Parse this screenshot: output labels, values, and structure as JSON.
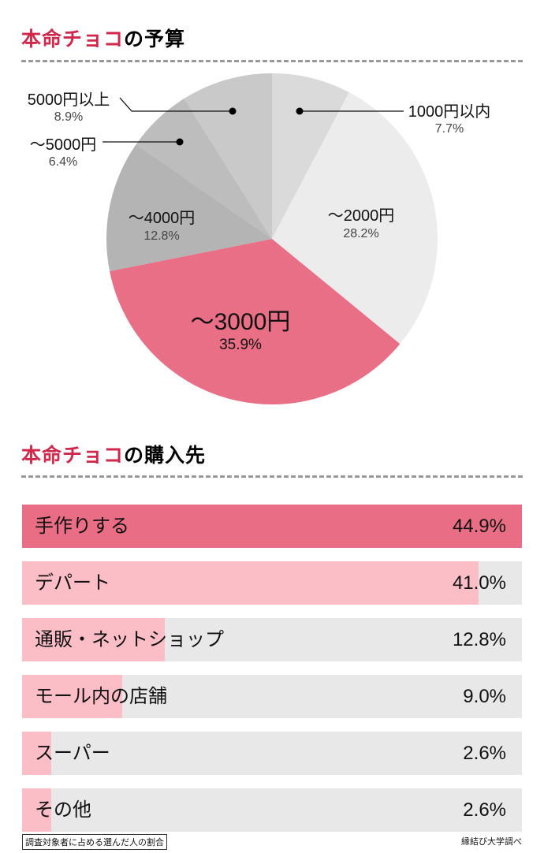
{
  "pie_section": {
    "title_accent": "本命チョコ",
    "title_rest": "の予算"
  },
  "bar_section": {
    "title_accent": "本命チョコ",
    "title_rest": "の購入先"
  },
  "chart_data": [
    {
      "type": "pie",
      "start": "top",
      "direction": "clockwise",
      "slices": [
        {
          "label": "1000円以内",
          "value": 7.7,
          "display": "7.7%",
          "color": "#dadada"
        },
        {
          "label": "〜2000円",
          "value": 28.2,
          "display": "28.2%",
          "color": "#ececec"
        },
        {
          "label": "〜3000円",
          "value": 35.9,
          "display": "35.9%",
          "color": "#e96f86"
        },
        {
          "label": "〜4000円",
          "value": 12.8,
          "display": "12.8%",
          "color": "#b4b4b4"
        },
        {
          "label": "〜5000円",
          "value": 6.4,
          "display": "6.4%",
          "color": "#bdbdbd"
        },
        {
          "label": "5000円以上",
          "value": 8.9,
          "display": "8.9%",
          "color": "#c9c9c9"
        }
      ]
    },
    {
      "type": "bar",
      "orientation": "horizontal",
      "categories": [
        "手作りする",
        "デパート",
        "通販・ネットショップ",
        "モール内の店舗",
        "スーパー",
        "その他"
      ],
      "values": [
        44.9,
        41.0,
        12.8,
        9.0,
        2.6,
        2.6
      ],
      "display": [
        "44.9%",
        "41.0%",
        "12.8%",
        "9.0%",
        "2.6%",
        "2.6%"
      ],
      "highlight_color": "#e96e85",
      "bar_color": "#fbbdc6",
      "track_color": "#e8e8e8"
    }
  ],
  "footer": {
    "note": "調査対象者に占める選んだ人の割合",
    "source": "縁結び大学調べ"
  }
}
